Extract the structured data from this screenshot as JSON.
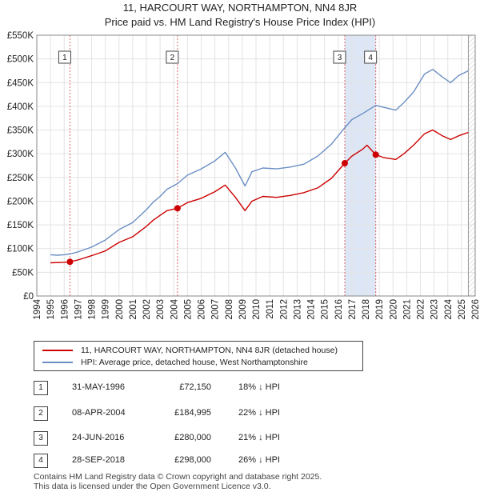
{
  "title_line1": "11, HARCOURT WAY, NORTHAMPTON, NN4 8JR",
  "title_line2": "Price paid vs. HM Land Registry's House Price Index (HPI)",
  "legend": {
    "property": "11, HARCOURT WAY, NORTHAMPTON, NN4 8JR (detached house)",
    "hpi": "HPI: Average price, detached house, West Northamptonshire"
  },
  "transactions": [
    {
      "label": "1",
      "date": "31-MAY-1996",
      "price": "£72,150",
      "hpi": "18% ↓ HPI"
    },
    {
      "label": "2",
      "date": "08-APR-2004",
      "price": "£184,995",
      "hpi": "22% ↓ HPI"
    },
    {
      "label": "3",
      "date": "24-JUN-2016",
      "price": "£280,000",
      "hpi": "21% ↓ HPI"
    },
    {
      "label": "4",
      "date": "28-SEP-2018",
      "price": "£298,000",
      "hpi": "26% ↓ HPI"
    }
  ],
  "footer": {
    "line1": "Contains HM Land Registry data © Crown copyright and database right 2025.",
    "line2": "This data is licensed under the Open Government Licence v3.0."
  },
  "colors": {
    "property_line": "#cc0000",
    "hpi_line": "#6b8fc4",
    "event_line": "#e06666",
    "band": "#dde6f5",
    "grid": "#e3e3e3"
  },
  "chart_data": {
    "type": "line",
    "xlim": [
      1994,
      2026
    ],
    "ylim": [
      0,
      550000
    ],
    "y_ticks": [
      0,
      50000,
      100000,
      150000,
      200000,
      250000,
      300000,
      350000,
      400000,
      450000,
      500000,
      550000
    ],
    "y_tick_labels": [
      "£0",
      "£50K",
      "£100K",
      "£150K",
      "£200K",
      "£250K",
      "£300K",
      "£350K",
      "£400K",
      "£450K",
      "£500K",
      "£550K"
    ],
    "x_ticks": [
      1994,
      1995,
      1996,
      1997,
      1998,
      1999,
      2000,
      2001,
      2002,
      2003,
      2004,
      2005,
      2006,
      2007,
      2008,
      2009,
      2010,
      2011,
      2012,
      2013,
      2014,
      2015,
      2016,
      2017,
      2018,
      2019,
      2020,
      2021,
      2022,
      2023,
      2024,
      2025,
      2026
    ],
    "x_tick_labels": [
      "1994",
      "1995",
      "1996",
      "1997",
      "1998",
      "1999",
      "2000",
      "2001",
      "2002",
      "2003",
      "2004",
      "2005",
      "2006",
      "2007",
      "2008",
      "2009",
      "2010",
      "2011",
      "2012",
      "2013",
      "2014",
      "2015",
      "2016",
      "2017",
      "2018",
      "2019",
      "2020",
      "2021",
      "2022",
      "2023",
      "2024",
      "2025",
      "2026"
    ],
    "data_start": 1995.0,
    "data_end": 2025.5,
    "series": [
      {
        "name": "HPI: Average price, detached house, West Northamptonshire",
        "x": [
          1995.0,
          1995.5,
          1996.0,
          1996.42,
          1997.0,
          1998.0,
          1999.0,
          2000.0,
          2001.0,
          2002.0,
          2002.5,
          2003.0,
          2003.5,
          2004.27,
          2005.0,
          2006.0,
          2007.0,
          2007.75,
          2008.5,
          2009.2,
          2009.7,
          2010.5,
          2011.5,
          2012.5,
          2013.5,
          2014.5,
          2015.5,
          2016.48,
          2017.0,
          2017.8,
          2018.74,
          2019.3,
          2020.2,
          2020.8,
          2021.5,
          2022.3,
          2022.9,
          2023.6,
          2024.2,
          2024.8,
          2025.5
        ],
        "y": [
          87000,
          86000,
          87000,
          88500,
          93000,
          103000,
          118000,
          140000,
          155000,
          182000,
          198000,
          210000,
          225000,
          237000,
          255000,
          268000,
          285000,
          303000,
          270000,
          232000,
          262000,
          270000,
          268000,
          272000,
          278000,
          295000,
          320000,
          355000,
          372000,
          385000,
          402000,
          398000,
          392000,
          408000,
          430000,
          468000,
          478000,
          462000,
          450000,
          465000,
          475000
        ]
      },
      {
        "name": "11, HARCOURT WAY, NORTHAMPTON, NN4 8JR (detached house)",
        "x": [
          1995.0,
          1996.0,
          1996.42,
          1997.0,
          1998.0,
          1999.0,
          2000.0,
          2001.0,
          2002.0,
          2002.5,
          2003.0,
          2003.5,
          2004.27,
          2005.0,
          2006.0,
          2007.0,
          2007.75,
          2008.5,
          2009.2,
          2009.7,
          2010.5,
          2011.5,
          2012.5,
          2013.5,
          2014.5,
          2015.5,
          2016.48,
          2017.0,
          2017.8,
          2018.1,
          2018.74,
          2019.3,
          2020.2,
          2020.8,
          2021.5,
          2022.3,
          2022.9,
          2023.6,
          2024.2,
          2024.8,
          2025.5
        ],
        "y": [
          70000,
          71000,
          72150,
          76000,
          85000,
          95000,
          113000,
          125000,
          147000,
          160000,
          170000,
          180000,
          184995,
          197000,
          206000,
          220000,
          234000,
          208000,
          180000,
          200000,
          210000,
          208000,
          212000,
          218000,
          228000,
          248000,
          280000,
          295000,
          310000,
          318000,
          298000,
          292000,
          288000,
          300000,
          318000,
          342000,
          350000,
          338000,
          330000,
          338000,
          345000
        ]
      }
    ],
    "events": [
      {
        "label": "1",
        "x": 1996.42,
        "y": 72150
      },
      {
        "label": "2",
        "x": 2004.27,
        "y": 184995
      },
      {
        "label": "3",
        "x": 2016.48,
        "y": 280000
      },
      {
        "label": "4",
        "x": 2018.74,
        "y": 298000
      }
    ],
    "shaded_periods": [
      [
        2016.48,
        2018.74
      ]
    ]
  }
}
